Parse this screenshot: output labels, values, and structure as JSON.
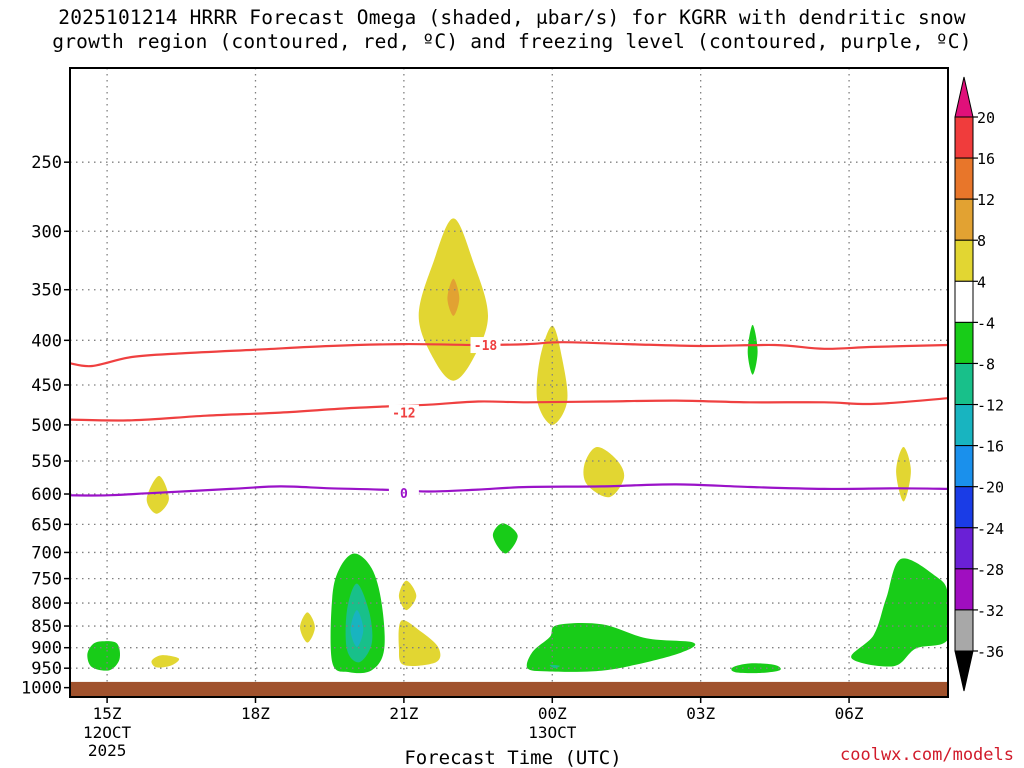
{
  "title": {
    "line1": "2025101214 HRRR Forecast Omega (shaded, μbar/s) for KGRR with dendritic snow",
    "line2": "growth region (contoured, red, ºC) and freezing level (contoured, purple, ºC)"
  },
  "credit": "coolwx.com/models",
  "colors": {
    "ground": "#a0522d",
    "dgz_contour": "#ef4040",
    "freezing_contour": "#9a12c8",
    "grid": "#808080"
  },
  "chart_data": {
    "type": "heatmap",
    "title": "2025101214 HRRR Forecast Omega (shaded, μbar/s) for KGRR with dendritic snow growth region (contoured, red, ºC) and freezing level (contoured, purple, ºC)",
    "xlabel": "Forecast Time (UTC)",
    "ylabel": "",
    "x_range_hours": [
      14.25,
      32.0
    ],
    "y_range_hpa": [
      1025,
      195
    ],
    "y_ticks": [
      250,
      300,
      350,
      400,
      450,
      500,
      550,
      600,
      650,
      700,
      750,
      800,
      850,
      900,
      950,
      1000
    ],
    "x_ticks": [
      {
        "hour": 15,
        "label": "15Z",
        "sub": [
          "12OCT",
          "2025"
        ]
      },
      {
        "hour": 18,
        "label": "18Z",
        "sub": []
      },
      {
        "hour": 21,
        "label": "21Z",
        "sub": []
      },
      {
        "hour": 24,
        "label": "00Z",
        "sub": [
          "13OCT"
        ]
      },
      {
        "hour": 27,
        "label": "03Z",
        "sub": []
      },
      {
        "hour": 30,
        "label": "06Z",
        "sub": []
      }
    ],
    "colorbar": {
      "labels": [
        "20",
        "16",
        "12",
        "8",
        "4",
        "-4",
        "-8",
        "-12",
        "-16",
        "-20",
        "-24",
        "-28",
        "-32",
        "-36"
      ],
      "bins": [
        {
          "range": [
            16,
            20
          ],
          "color": "#f03c3c"
        },
        {
          "range": [
            12,
            16
          ],
          "color": "#e8762a"
        },
        {
          "range": [
            8,
            12
          ],
          "color": "#e2a232"
        },
        {
          "range": [
            4,
            8
          ],
          "color": "#e2d632"
        },
        {
          "range": [
            -4,
            4
          ],
          "color": "#ffffff"
        },
        {
          "range": [
            -8,
            -4
          ],
          "color": "#18cc18"
        },
        {
          "range": [
            -12,
            -8
          ],
          "color": "#18c08a"
        },
        {
          "range": [
            -16,
            -12
          ],
          "color": "#18b4c0"
        },
        {
          "range": [
            -20,
            -16
          ],
          "color": "#1a90ec"
        },
        {
          "range": [
            -24,
            -20
          ],
          "color": "#1a3ce6"
        },
        {
          "range": [
            -28,
            -24
          ],
          "color": "#6a20d6"
        },
        {
          "range": [
            -32,
            -28
          ],
          "color": "#a00ec0"
        },
        {
          "range": [
            -36,
            -32
          ],
          "color": "#a8a8a8"
        }
      ],
      "top_arrow_color": "#e0107a",
      "bottom_arrow_color": "#000000"
    },
    "contours": [
      {
        "name": "dgz-contour--18",
        "label": "-18",
        "color": "#ef4040",
        "label_at": [
          22.65,
          405
        ],
        "points": [
          [
            14.25,
            425
          ],
          [
            14.7,
            428
          ],
          [
            15.5,
            418
          ],
          [
            16.5,
            414
          ],
          [
            18,
            410
          ],
          [
            19.5,
            406
          ],
          [
            21,
            404
          ],
          [
            22.5,
            405
          ],
          [
            23.5,
            404
          ],
          [
            24.2,
            402
          ],
          [
            25.5,
            404
          ],
          [
            27,
            406
          ],
          [
            28.5,
            405
          ],
          [
            29.5,
            409
          ],
          [
            30.5,
            407
          ],
          [
            32,
            405
          ]
        ]
      },
      {
        "name": "dgz-contour--12",
        "label": "-12",
        "color": "#ef4040",
        "label_at": [
          21.0,
          484
        ],
        "points": [
          [
            14.25,
            493
          ],
          [
            15.5,
            494
          ],
          [
            17,
            488
          ],
          [
            18.5,
            484
          ],
          [
            20,
            478
          ],
          [
            21.5,
            474
          ],
          [
            22.5,
            470
          ],
          [
            23.5,
            471
          ],
          [
            25,
            470
          ],
          [
            26.5,
            469
          ],
          [
            28,
            471
          ],
          [
            29.5,
            471
          ],
          [
            30.5,
            473
          ],
          [
            32,
            466
          ]
        ]
      },
      {
        "name": "freezing-level-contour-0",
        "label": "0",
        "color": "#9a12c8",
        "label_at": [
          21.0,
          598
        ],
        "points": [
          [
            14.25,
            602
          ],
          [
            15,
            602
          ],
          [
            16,
            598
          ],
          [
            17.5,
            592
          ],
          [
            18.5,
            588
          ],
          [
            19.5,
            591
          ],
          [
            20.5,
            593
          ],
          [
            21.5,
            596
          ],
          [
            22.5,
            593
          ],
          [
            23.5,
            589
          ],
          [
            25,
            588
          ],
          [
            26.5,
            585
          ],
          [
            28,
            589
          ],
          [
            29.5,
            592
          ],
          [
            31,
            591
          ],
          [
            32,
            592
          ]
        ]
      }
    ],
    "features": [
      {
        "name": "omega-positive-4-8-near-22z-upper",
        "value_bin": "4 to 8",
        "polygon": [
          [
            22.0,
            290
          ],
          [
            22.4,
            325
          ],
          [
            22.7,
            375
          ],
          [
            22.4,
            420
          ],
          [
            22.0,
            445
          ],
          [
            21.6,
            420
          ],
          [
            21.3,
            375
          ],
          [
            21.6,
            325
          ]
        ]
      },
      {
        "name": "omega-positive-8-12-core-22z",
        "value_bin": "8 to 12",
        "polygon": [
          [
            22.0,
            340
          ],
          [
            22.12,
            358
          ],
          [
            22.0,
            375
          ],
          [
            21.88,
            358
          ]
        ]
      },
      {
        "name": "omega-positive-4-8-near-00z",
        "value_bin": "4 to 8",
        "polygon": [
          [
            24.0,
            385
          ],
          [
            24.2,
            420
          ],
          [
            24.3,
            470
          ],
          [
            24.0,
            500
          ],
          [
            23.7,
            470
          ],
          [
            23.75,
            420
          ]
        ]
      },
      {
        "name": "omega-positive-4-8-near-01z",
        "value_bin": "4 to 8",
        "polygon": [
          [
            24.9,
            530
          ],
          [
            25.3,
            548
          ],
          [
            25.45,
            575
          ],
          [
            25.15,
            605
          ],
          [
            24.7,
            585
          ],
          [
            24.65,
            555
          ]
        ]
      },
      {
        "name": "omega-positive-4-8-near-07z",
        "value_bin": "4 to 8",
        "polygon": [
          [
            31.1,
            530
          ],
          [
            31.25,
            565
          ],
          [
            31.1,
            612
          ],
          [
            30.95,
            565
          ]
        ]
      },
      {
        "name": "omega-positive-4-8-near-16z",
        "value_bin": "4 to 8",
        "polygon": [
          [
            16.05,
            572
          ],
          [
            16.25,
            608
          ],
          [
            16.0,
            632
          ],
          [
            15.8,
            608
          ]
        ]
      },
      {
        "name": "omega-positive-4-8-near-19z",
        "value_bin": "4 to 8",
        "polygon": [
          [
            19.05,
            820
          ],
          [
            19.2,
            853
          ],
          [
            19.05,
            888
          ],
          [
            18.9,
            853
          ]
        ]
      },
      {
        "name": "omega-positive-4-8-near-21z-mid",
        "value_bin": "4 to 8",
        "polygon": [
          [
            21.05,
            754
          ],
          [
            21.25,
            785
          ],
          [
            21.05,
            815
          ],
          [
            20.9,
            785
          ]
        ]
      },
      {
        "name": "omega-positive-4-8-near-21z-low",
        "value_bin": "4 to 8",
        "polygon": [
          [
            20.95,
            838
          ],
          [
            21.35,
            863
          ],
          [
            21.7,
            900
          ],
          [
            21.65,
            935
          ],
          [
            21.0,
            942
          ],
          [
            20.9,
            900
          ]
        ]
      },
      {
        "name": "omega-positive-4-8-near-16z-low",
        "value_bin": "4 to 8",
        "polygon": [
          [
            16.1,
            918
          ],
          [
            16.45,
            926
          ],
          [
            16.3,
            943
          ],
          [
            16.0,
            948
          ],
          [
            15.9,
            932
          ]
        ]
      },
      {
        "name": "omega-negative-4-8-near-20z",
        "value_bin": "-4 to -8",
        "polygon": [
          [
            20.0,
            702
          ],
          [
            20.35,
            730
          ],
          [
            20.55,
            800
          ],
          [
            20.6,
            905
          ],
          [
            20.35,
            955
          ],
          [
            19.9,
            960
          ],
          [
            19.55,
            935
          ],
          [
            19.55,
            790
          ],
          [
            19.7,
            730
          ]
        ]
      },
      {
        "name": "omega-negative-8-12-near-20z",
        "value_bin": "-8 to -12",
        "polygon": [
          [
            20.05,
            760
          ],
          [
            20.3,
            820
          ],
          [
            20.35,
            890
          ],
          [
            20.1,
            935
          ],
          [
            19.85,
            905
          ],
          [
            19.85,
            815
          ]
        ]
      },
      {
        "name": "omega-negative-12-16-core-20z",
        "value_bin": "-12 to -16",
        "polygon": [
          [
            20.05,
            815
          ],
          [
            20.18,
            858
          ],
          [
            20.05,
            898
          ],
          [
            19.92,
            858
          ]
        ]
      },
      {
        "name": "omega-negative-4-8-near-15z",
        "value_bin": "-4 to -8",
        "polygon": [
          [
            14.9,
            885
          ],
          [
            15.2,
            890
          ],
          [
            15.25,
            928
          ],
          [
            15.05,
            955
          ],
          [
            14.7,
            948
          ],
          [
            14.6,
            918
          ],
          [
            14.7,
            893
          ]
        ]
      },
      {
        "name": "omega-negative-4-8-near-23z",
        "value_bin": "-4 to -8",
        "polygon": [
          [
            23.0,
            648
          ],
          [
            23.3,
            670
          ],
          [
            23.05,
            702
          ],
          [
            22.8,
            670
          ]
        ]
      },
      {
        "name": "omega-negative-4-8-near-00z-low",
        "value_bin": "-4 to -8",
        "polygon": [
          [
            24.1,
            848
          ],
          [
            25.0,
            846
          ],
          [
            25.9,
            878
          ],
          [
            26.85,
            888
          ],
          [
            26.6,
            912
          ],
          [
            25.55,
            945
          ],
          [
            24.8,
            958
          ],
          [
            23.9,
            958
          ],
          [
            23.5,
            950
          ],
          [
            23.6,
            910
          ],
          [
            23.95,
            875
          ]
        ]
      },
      {
        "name": "omega-negative-4-8-near-04z",
        "value_bin": "-4 to -8",
        "polygon": [
          [
            28.05,
            384
          ],
          [
            28.15,
            412
          ],
          [
            28.05,
            438
          ],
          [
            27.95,
            412
          ]
        ]
      },
      {
        "name": "omega-negative-4-8-near-04z-low",
        "value_bin": "-4 to -8",
        "polygon": [
          [
            28.0,
            938
          ],
          [
            28.5,
            942
          ],
          [
            28.6,
            955
          ],
          [
            28.2,
            962
          ],
          [
            27.7,
            960
          ],
          [
            27.65,
            948
          ]
        ]
      },
      {
        "name": "omega-negative-4-8-near-07z-low",
        "value_bin": "-4 to -8",
        "polygon": [
          [
            31.05,
            712
          ],
          [
            31.75,
            745
          ],
          [
            32.0,
            780
          ],
          [
            32.0,
            880
          ],
          [
            31.35,
            902
          ],
          [
            30.9,
            945
          ],
          [
            30.05,
            925
          ],
          [
            30.5,
            870
          ],
          [
            30.75,
            790
          ]
        ]
      },
      {
        "name": "omega-negative-8-12-dot-00z",
        "value_bin": "-8 to -12",
        "polygon": [
          [
            23.95,
            942
          ],
          [
            24.15,
            944
          ],
          [
            24.05,
            950
          ]
        ]
      }
    ],
    "ground_level_hpa": 985
  }
}
